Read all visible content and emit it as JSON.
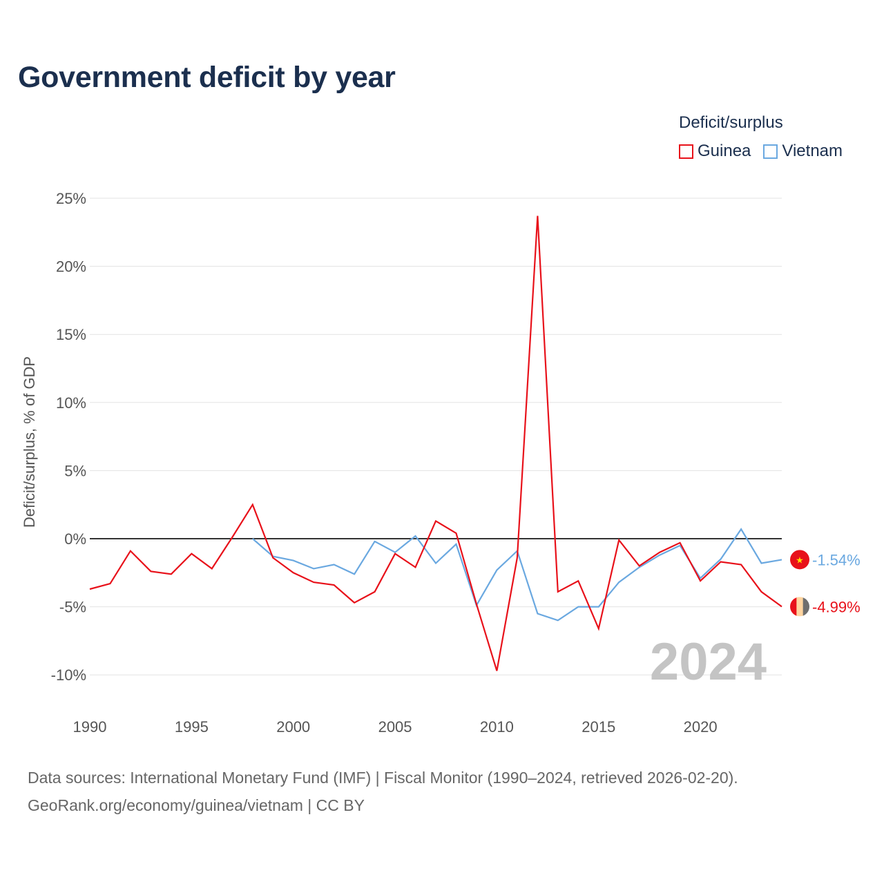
{
  "page": {
    "title": "Government deficit by year",
    "source_line1": "Data sources: International Monetary Fund (IMF) | Fiscal Monitor (1990–2024, retrieved 2026-02-20).",
    "source_line2": "GeoRank.org/economy/guinea/vietnam | CC BY"
  },
  "legend": {
    "title": "Deficit/surplus",
    "items": [
      {
        "label": "Guinea",
        "color": "#e8111a"
      },
      {
        "label": "Vietnam",
        "color": "#6aa8e0"
      }
    ]
  },
  "chart_data": {
    "type": "line",
    "title": "Government deficit by year",
    "xlabel": "",
    "ylabel": "Deficit/surplus, % of GDP",
    "xlim": [
      1990,
      2024
    ],
    "ylim": [
      -12,
      25
    ],
    "xticks": [
      1990,
      1995,
      2000,
      2005,
      2010,
      2015,
      2020
    ],
    "xtick_labels": [
      "1990",
      "1995",
      "2000",
      "2005",
      "2010",
      "2015",
      "2020"
    ],
    "yticks": [
      25,
      20,
      15,
      10,
      5,
      0,
      -5,
      -10
    ],
    "ytick_labels": [
      "25%",
      "20%",
      "15%",
      "10%",
      "5%",
      "0%",
      "-5%",
      "-10%"
    ],
    "grid": true,
    "legend_position": "top-right",
    "current_year_label": "2024",
    "series": [
      {
        "name": "Guinea",
        "color": "#e8111a",
        "end_label": "-4.99%",
        "flag": "guinea",
        "x": [
          1990,
          1991,
          1992,
          1993,
          1994,
          1995,
          1996,
          1997,
          1998,
          1999,
          2000,
          2001,
          2002,
          2003,
          2004,
          2005,
          2006,
          2007,
          2008,
          2009,
          2010,
          2011,
          2012,
          2013,
          2014,
          2015,
          2016,
          2017,
          2018,
          2019,
          2020,
          2021,
          2022,
          2023,
          2024
        ],
        "values": [
          -3.7,
          -3.3,
          -0.9,
          -2.4,
          -2.6,
          -1.1,
          -2.2,
          0.1,
          2.5,
          -1.4,
          -2.5,
          -3.2,
          -3.4,
          -4.7,
          -3.9,
          -1.1,
          -2.1,
          1.3,
          0.4,
          -4.8,
          -9.7,
          -1.4,
          23.7,
          -3.9,
          -3.1,
          -6.6,
          -0.1,
          -2.0,
          -1.0,
          -0.3,
          -3.1,
          -1.7,
          -1.9,
          -3.9,
          -4.99
        ]
      },
      {
        "name": "Vietnam",
        "color": "#6aa8e0",
        "end_label": "-1.54%",
        "flag": "vietnam",
        "x": [
          1998,
          1999,
          2000,
          2001,
          2002,
          2003,
          2004,
          2005,
          2006,
          2007,
          2008,
          2009,
          2010,
          2011,
          2012,
          2013,
          2014,
          2015,
          2016,
          2017,
          2018,
          2019,
          2020,
          2021,
          2022,
          2023,
          2024
        ],
        "values": [
          0.0,
          -1.3,
          -1.6,
          -2.2,
          -1.9,
          -2.6,
          -0.2,
          -1.0,
          0.2,
          -1.8,
          -0.4,
          -4.9,
          -2.3,
          -0.9,
          -5.5,
          -6.0,
          -5.0,
          -5.0,
          -3.2,
          -2.1,
          -1.2,
          -0.5,
          -2.9,
          -1.5,
          0.7,
          -1.8,
          -1.54
        ]
      }
    ]
  }
}
